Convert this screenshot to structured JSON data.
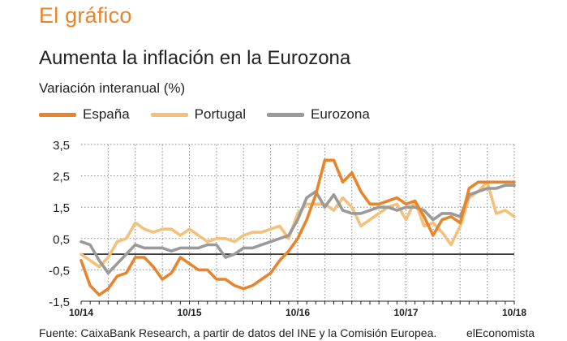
{
  "header": {
    "section_title": "El gráfico",
    "chart_title": "Aumenta la inflación en la Eurozona",
    "subtitle": "Variación interanual (%)"
  },
  "footer": {
    "source": "Fuente: CaixaBank Research, a partir de datos del INE y la Comisión Europea.",
    "brand": "elEconomista"
  },
  "chart_data": {
    "type": "line",
    "title": "Aumenta la inflación en la Eurozona",
    "ylabel": "Variación interanual (%)",
    "xlabel": "",
    "ylim": [
      -1.5,
      3.5
    ],
    "y_ticks": [
      -1.5,
      -0.5,
      0.5,
      1.5,
      2.5,
      3.5
    ],
    "y_tick_labels": [
      "-1,5",
      "-0,5",
      "0,5",
      "1,5",
      "2,5",
      "3,5"
    ],
    "zero_line": 0,
    "x_tick_labels": [
      "10/14",
      "10/15",
      "10/16",
      "10/17",
      "10/18"
    ],
    "x_tick_indices": [
      0,
      12,
      24,
      36,
      48
    ],
    "grid": true,
    "series": [
      {
        "name": "España",
        "color": "#e8842c",
        "values": [
          -0.2,
          -1.0,
          -1.3,
          -1.1,
          -0.7,
          -0.6,
          -0.1,
          -0.1,
          -0.4,
          -0.8,
          -0.6,
          -0.1,
          -0.3,
          -0.5,
          -0.5,
          -0.8,
          -0.8,
          -1.0,
          -1.1,
          -1.0,
          -0.8,
          -0.6,
          -0.2,
          0.1,
          0.5,
          1.1,
          1.9,
          3.0,
          3.0,
          2.3,
          2.6,
          2.0,
          1.6,
          1.6,
          1.7,
          1.8,
          1.6,
          1.7,
          1.2,
          0.6,
          1.1,
          1.2,
          1.0,
          2.1,
          2.3,
          2.3,
          2.3,
          2.3,
          2.3
        ]
      },
      {
        "name": "Portugal",
        "color": "#f5c07a",
        "values": [
          0.0,
          -0.2,
          -0.4,
          -0.1,
          0.4,
          0.5,
          1.0,
          0.8,
          0.7,
          0.8,
          0.8,
          0.6,
          0.8,
          0.6,
          0.4,
          0.5,
          0.5,
          0.4,
          0.6,
          0.7,
          0.7,
          0.8,
          0.9,
          0.5,
          1.3,
          1.6,
          1.6,
          1.6,
          1.4,
          1.8,
          1.5,
          0.9,
          1.1,
          1.3,
          1.5,
          1.6,
          1.1,
          1.7,
          0.9,
          1.0,
          0.7,
          0.3,
          0.9,
          1.8,
          2.0,
          2.3,
          1.3,
          1.4,
          1.2
        ]
      },
      {
        "name": "Eurozona",
        "color": "#9a9a9a",
        "values": [
          0.4,
          0.3,
          -0.2,
          -0.6,
          -0.3,
          0.0,
          0.3,
          0.2,
          0.2,
          0.2,
          0.1,
          0.2,
          0.2,
          0.2,
          0.3,
          0.3,
          -0.1,
          0.0,
          0.2,
          0.2,
          0.3,
          0.4,
          0.5,
          0.6,
          1.1,
          1.8,
          2.0,
          1.5,
          1.9,
          1.4,
          1.3,
          1.3,
          1.4,
          1.5,
          1.5,
          1.4,
          1.5,
          1.5,
          1.4,
          1.1,
          1.3,
          1.3,
          1.2,
          1.9,
          2.0,
          2.1,
          2.1,
          2.2,
          2.2
        ]
      }
    ]
  }
}
